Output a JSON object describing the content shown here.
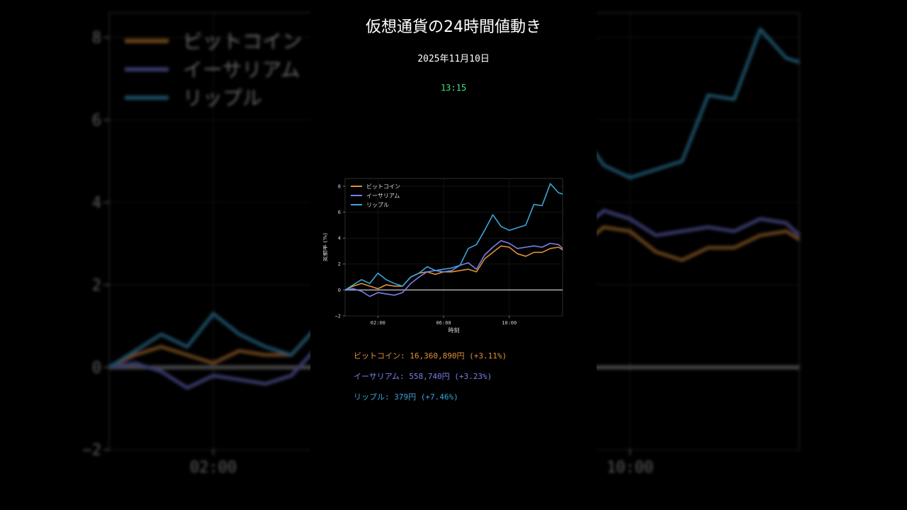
{
  "page": {
    "title": "仮想通貨の24時間値動き",
    "date": "2025年11月10日",
    "time": "13:15"
  },
  "colors": {
    "background": "#000000",
    "btc": "#e0913a",
    "eth": "#7b7fe8",
    "xrp": "#3ea5d6",
    "time": "#4ade80",
    "baseline": "#9a9a9a"
  },
  "chart_data": {
    "type": "line",
    "xlabel": "時刻",
    "ylabel": "変動率 (%)",
    "xticks": [
      "02:00",
      "06:00",
      "10:00"
    ],
    "xtick_hours": [
      2,
      6,
      10
    ],
    "xlim_hours": [
      0,
      13.25
    ],
    "yticks": [
      "−2",
      "0",
      "2",
      "4",
      "6",
      "8"
    ],
    "ylim": [
      -2,
      8.6
    ],
    "grid": true,
    "legend": "top-left",
    "x_hours": [
      0,
      0.5,
      1,
      1.5,
      2,
      2.5,
      3,
      3.5,
      4,
      4.5,
      5,
      5.5,
      6,
      6.5,
      7,
      7.5,
      8,
      8.5,
      9,
      9.5,
      10,
      10.5,
      11,
      11.5,
      12,
      12.5,
      13,
      13.25
    ],
    "series": [
      {
        "name": "ビットコイン",
        "color": "#e0913a",
        "values": [
          0,
          0.3,
          0.5,
          0.3,
          0.1,
          0.4,
          0.3,
          0.3,
          1.0,
          1.3,
          1.4,
          1.2,
          1.4,
          1.4,
          1.5,
          1.6,
          1.4,
          2.4,
          2.9,
          3.4,
          3.3,
          2.8,
          2.6,
          2.9,
          2.9,
          3.2,
          3.3,
          3.1
        ]
      },
      {
        "name": "イーサリアム",
        "color": "#7b7fe8",
        "values": [
          0,
          0.1,
          -0.1,
          -0.5,
          -0.2,
          -0.3,
          -0.4,
          -0.2,
          0.5,
          1.0,
          1.4,
          1.5,
          1.4,
          1.5,
          1.9,
          2.1,
          1.6,
          2.7,
          3.3,
          3.8,
          3.6,
          3.2,
          3.3,
          3.4,
          3.3,
          3.6,
          3.5,
          3.2
        ]
      },
      {
        "name": "リップル",
        "color": "#3ea5d6",
        "values": [
          0,
          0.4,
          0.8,
          0.5,
          1.3,
          0.8,
          0.5,
          0.3,
          1.0,
          1.3,
          1.8,
          1.5,
          1.6,
          1.7,
          1.9,
          3.2,
          3.5,
          4.6,
          5.8,
          4.9,
          4.6,
          4.8,
          5.0,
          6.6,
          6.5,
          8.2,
          7.5,
          7.4
        ]
      }
    ]
  },
  "stats": [
    {
      "label": "ビットコイン:",
      "value": "16,360,890円",
      "change": "(+3.11%)",
      "color": "#e0913a"
    },
    {
      "label": "イーサリアム:",
      "value": "558,740円",
      "change": "(+3.23%)",
      "color": "#7b7fe8"
    },
    {
      "label": "リップル:",
      "value": "379円",
      "change": "(+7.46%)",
      "color": "#3ea5d6"
    }
  ]
}
